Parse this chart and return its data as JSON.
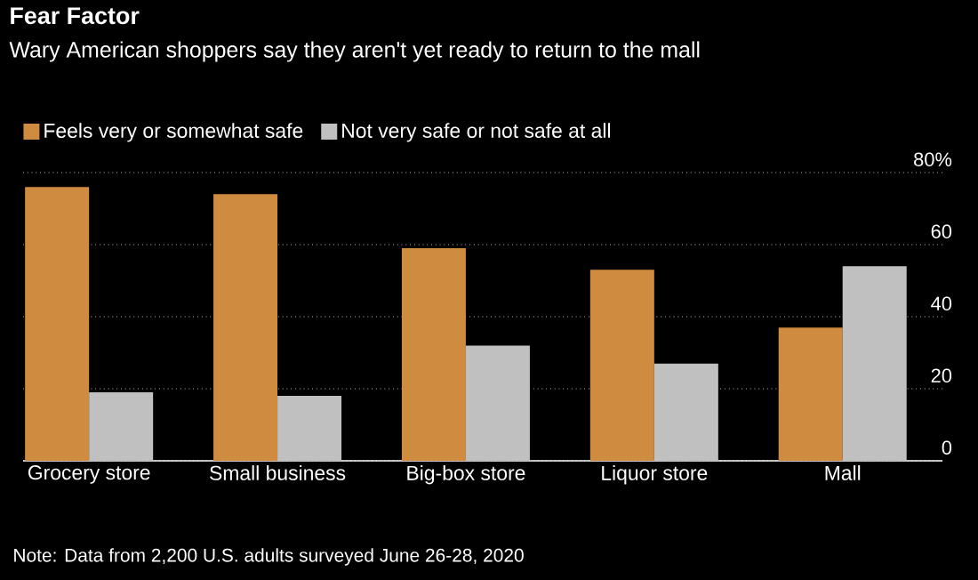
{
  "chart_data": {
    "type": "bar",
    "title": "Fear Factor",
    "subtitle": "Wary American shoppers say they aren't yet ready to return to the mall",
    "categories": [
      "Grocery store",
      "Small business",
      "Big-box store",
      "Liquor store",
      "Mall"
    ],
    "series": [
      {
        "name": "Feels very or somewhat safe",
        "color": "#cf8b3f",
        "values": [
          76,
          74,
          59,
          53,
          37
        ]
      },
      {
        "name": "Not very safe or not safe at all",
        "color": "#c0c0c0",
        "values": [
          19,
          18,
          32,
          27,
          54
        ]
      }
    ],
    "ylim": [
      0,
      80
    ],
    "yticks": [
      0,
      20,
      40,
      60,
      {
        "value": 80,
        "label": "80%"
      }
    ],
    "grid": "y",
    "legend": "top left",
    "annotations": [
      "Note: Data from 2,200 U.S. adults surveyed June 26-28, 2020"
    ]
  }
}
